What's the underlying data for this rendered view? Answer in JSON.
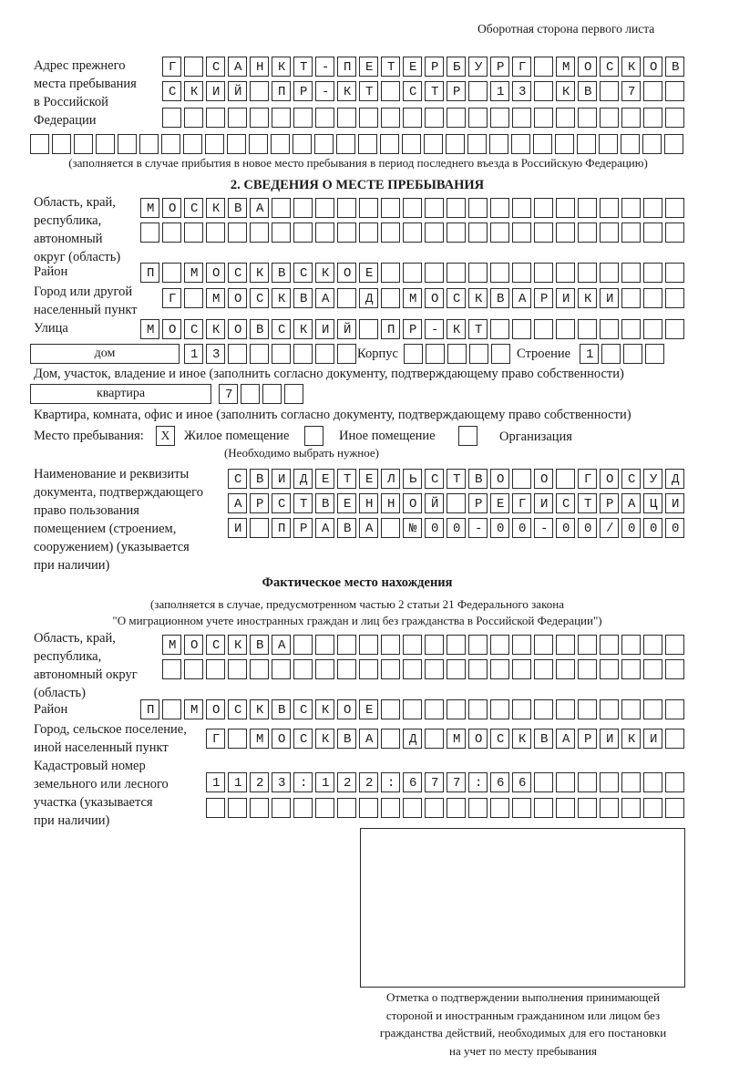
{
  "header": {
    "side_note": "Оборотная сторона первого листа"
  },
  "previous_address": {
    "label": [
      "Адрес прежнего",
      "места пребывания",
      "в Российской",
      "Федерации"
    ],
    "rows": [
      {
        "id": "prev1",
        "value": "Г САНКТ-ПЕТЕРБУРГ МОСКОВ",
        "boxes": 24
      },
      {
        "id": "prev2",
        "value": "СКИЙ ПР-КТ СТР 13 КВ 7",
        "boxes": 24
      },
      {
        "id": "prev3",
        "value": "",
        "boxes": 24
      },
      {
        "id": "prev4",
        "value": "",
        "boxes": 30
      }
    ],
    "note": "(заполняется в случае прибытия в новое место пребывания в период последнего въезда в Российскую Федерацию)"
  },
  "section2": {
    "title": "2. СВЕДЕНИЯ О МЕСТЕ ПРЕБЫВАНИЯ",
    "region_label": [
      "Область, край,",
      "республика,",
      "автономный",
      "округ (область)"
    ],
    "district_label": "Район",
    "city_label": [
      "Город или другой",
      "населенный пункт"
    ],
    "street_label": "Улица",
    "rows": [
      {
        "id": "reg1",
        "value": "МОСКВА",
        "boxes": 25
      },
      {
        "id": "reg2",
        "value": "",
        "boxes": 25
      },
      {
        "id": "district",
        "value": "П МОСКВСКОЕ",
        "boxes": 25
      },
      {
        "id": "city",
        "value": "Г МОСКВА Д МОСКВАРИКИ",
        "boxes": 24
      },
      {
        "id": "street",
        "value": "МОСКОВСКИЙ ПР-КТ",
        "boxes": 25
      },
      {
        "id": "house",
        "value": "13",
        "boxes": 8
      },
      {
        "id": "korpus",
        "value": "",
        "boxes": 5
      },
      {
        "id": "building",
        "value": "1",
        "boxes": 4
      },
      {
        "id": "flat",
        "value": "7",
        "boxes": 4
      }
    ],
    "house_type": "дом",
    "korpus_label": "Корпус",
    "building_label": "Строение",
    "house_note": "Дом, участок, владение и иное (заполнить согласно документу, подтверждающему право собственности)",
    "flat_type": "квартира",
    "flat_note": "Квартира, комната, офис и иное (заполнить согласно документу, подтверждающему право собственности)",
    "stay_place": {
      "label": "Место пребывания:",
      "options": [
        {
          "label": "Жилое помещение",
          "mark": "X"
        },
        {
          "label": "Иное помещение",
          "mark": ""
        },
        {
          "label": "Организация",
          "mark": ""
        }
      ],
      "hint": "(Необходимо выбрать нужное)"
    },
    "document_label": [
      "Наименование и реквизиты",
      "документа, подтверждающего",
      "право пользования",
      "помещением (строением,",
      "сооружением) (указывается",
      "при наличии)"
    ],
    "doc_rows": [
      {
        "id": "doc1",
        "value": "СВИДЕТЕЛЬСТВО О ГОСУД",
        "boxes": 21
      },
      {
        "id": "doc2",
        "value": "АРСТВЕННОЙ РЕГИСТРАЦИ",
        "boxes": 21
      },
      {
        "id": "doc3",
        "value": "И ПРАВА №00-00-00/000",
        "boxes": 21
      }
    ]
  },
  "actual_location": {
    "title": "Фактическое место нахождения",
    "note_lines": [
      "(заполняется в случае, предусмотренном частью 2 статьи 21 Федерального закона",
      "\"О миграционном учете иностранных граждан и лиц без гражданства в Российской Федерации\")"
    ],
    "region_label": [
      "Область, край,",
      "республика,",
      "автономный округ",
      "(область)"
    ],
    "district_label": "Район",
    "city_label": [
      "Город, сельское поселение,",
      "иной населенный пункт"
    ],
    "cadastral_label": [
      "Кадастровый номер",
      "земельного или лесного",
      "участка (указывается",
      "при наличии)"
    ],
    "rows": [
      {
        "id": "freg1",
        "value": "МОСКВА",
        "boxes": 24
      },
      {
        "id": "freg2",
        "value": "",
        "boxes": 24
      },
      {
        "id": "fdistrict",
        "value": "П МОСКВСКОЕ",
        "boxes": 25
      },
      {
        "id": "fcity",
        "value": "Г МОСКВА Д МОСКВАРИКИ",
        "boxes": 22
      },
      {
        "id": "cad1",
        "value": "1123:122:677:66",
        "boxes": 22
      },
      {
        "id": "cad2",
        "value": "",
        "boxes": 22
      }
    ]
  },
  "stamp": {
    "caption_lines": [
      "Отметка о подтверждении выполнения принимающей",
      "стороной и иностранным гражданином или лицом без",
      "гражданства действий, необходимых для его постановки",
      "на учет по месту пребывания"
    ]
  }
}
